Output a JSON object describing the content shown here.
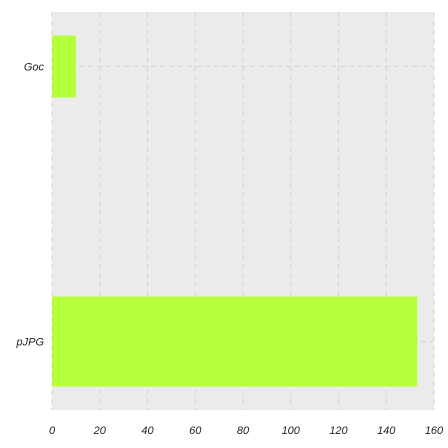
{
  "chart_data": {
    "type": "bar",
    "orientation": "horizontal",
    "categories": [
      "Goc",
      "pJPG"
    ],
    "values": [
      10,
      153
    ],
    "title": "",
    "xlabel": "",
    "ylabel": "",
    "xlim": [
      0,
      160
    ],
    "x_ticks": [
      0,
      20,
      40,
      60,
      80,
      100,
      120,
      140,
      160
    ],
    "grid": true,
    "legend": "none",
    "colors": {
      "bar": "#b6ff3b",
      "plot_background": "#ebebeb",
      "grid": "#d4d4d4"
    }
  }
}
